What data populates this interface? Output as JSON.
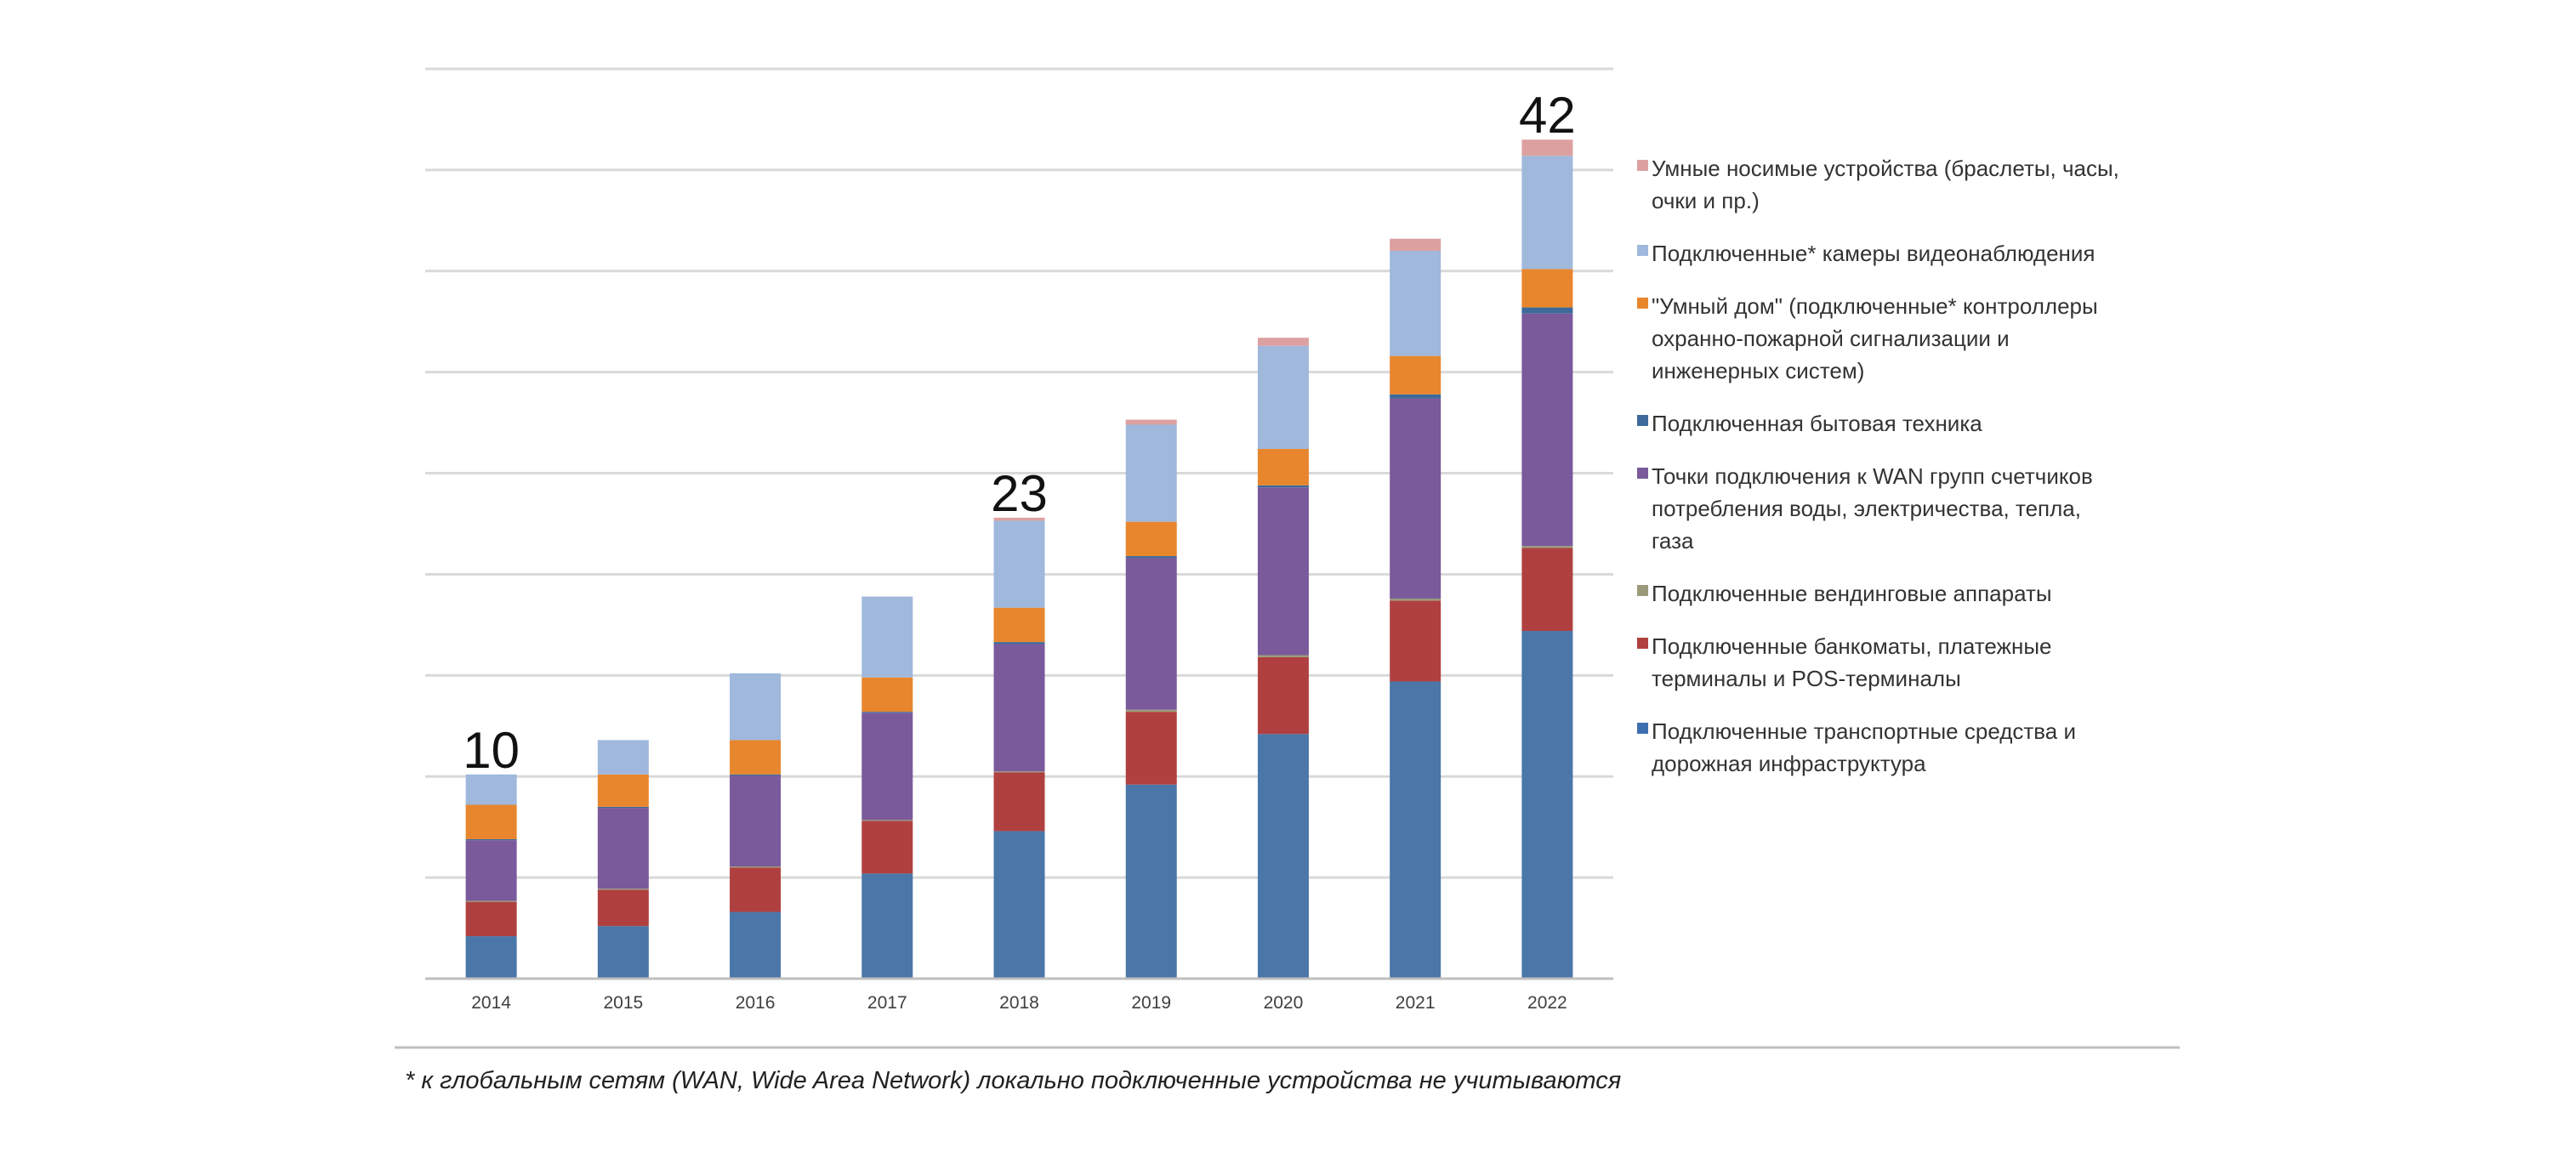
{
  "chart_data": {
    "type": "bar",
    "stacked": true,
    "title": "",
    "xlabel": "",
    "ylabel": "",
    "ylim": [
      0,
      45
    ],
    "categories": [
      "2014",
      "2015",
      "2016",
      "2017",
      "2018",
      "2019",
      "2020",
      "2021",
      "2022"
    ],
    "total_labels": [
      {
        "category": "2014",
        "text": "10"
      },
      {
        "category": "2018",
        "text": "23"
      },
      {
        "category": "2022",
        "text": "42"
      }
    ],
    "series": [
      {
        "name": "Подключенные транспортные средства и дорожная инфраструктура",
        "color": "#4a76a8",
        "values": [
          2.1,
          2.6,
          3.3,
          5.2,
          7.3,
          9.6,
          12.1,
          14.7,
          17.2
        ]
      },
      {
        "name": "Подключенные банкоматы, платежные терминалы и POS-терминалы",
        "color": "#b04040",
        "values": [
          1.7,
          1.8,
          2.2,
          2.6,
          2.9,
          3.6,
          3.8,
          4.0,
          4.1
        ]
      },
      {
        "name": "Подключенные вендинговые аппараты",
        "color": "#9a9a7a",
        "values": [
          0.05,
          0.05,
          0.05,
          0.05,
          0.05,
          0.1,
          0.1,
          0.1,
          0.1
        ]
      },
      {
        "name": "Точки подключения к WAN групп счетчиков потребления воды, электричества, тепла, газа",
        "color": "#7a5a9a",
        "values": [
          3.0,
          4.0,
          4.5,
          5.3,
          6.3,
          7.5,
          8.3,
          9.9,
          11.5
        ]
      },
      {
        "name": "Подключенная бытовая техника",
        "color": "#3d6a9a",
        "values": [
          0.05,
          0.05,
          0.05,
          0.05,
          0.1,
          0.1,
          0.1,
          0.2,
          0.3
        ]
      },
      {
        "name": "\"Умный дом\" (подключенные* контроллеры охранно-пожарной сигнализации и инженерных систем)",
        "color": "#e8862e",
        "values": [
          1.7,
          1.6,
          1.7,
          1.7,
          1.7,
          1.7,
          1.8,
          1.9,
          1.9
        ]
      },
      {
        "name": "Подключенные* камеры видеонаблюдения",
        "color": "#9fb8dc",
        "values": [
          1.5,
          1.7,
          3.3,
          4.0,
          4.3,
          4.8,
          5.1,
          5.2,
          5.6
        ]
      },
      {
        "name": "Умные носимые устройства (браслеты, часы, очки и пр.)",
        "color": "#dca0a0",
        "values": [
          0.0,
          0.0,
          0.0,
          0.0,
          0.15,
          0.25,
          0.4,
          0.6,
          0.8
        ]
      }
    ],
    "legend": {
      "placement": "right",
      "entries": [
        {
          "color": "#dca0a0",
          "lines": [
            "Умные носимые устройства (браслеты, часы,",
            "очки и пр.)"
          ]
        },
        {
          "color": "#9fb8dc",
          "lines": [
            "Подключенные* камеры видеонаблюдения"
          ]
        },
        {
          "color": "#e8862e",
          "lines": [
            "\"Умный дом\" (подключенные* контроллеры",
            "охранно-пожарной сигнализации и",
            "инженерных систем)"
          ]
        },
        {
          "color": "#3d6a9a",
          "lines": [
            "Подключенная бытовая техника"
          ]
        },
        {
          "color": "#7a5a9a",
          "lines": [
            "Точки подключения к WAN групп счетчиков",
            "потребления воды, электричества, тепла,",
            "газа"
          ]
        },
        {
          "color": "#9a9a7a",
          "lines": [
            "Подключенные вендинговые аппараты"
          ]
        },
        {
          "color": "#b04040",
          "lines": [
            "Подключенные банкоматы, платежные",
            "терминалы и POS-терминалы"
          ]
        },
        {
          "color": "#3d6fb0",
          "lines": [
            "Подключенные транспортные средства и",
            "дорожная инфраструктура"
          ]
        }
      ]
    },
    "gridlines": true,
    "gridline_step": 5
  },
  "footnote": "* к глобальным сетям (WAN, Wide Area Network) локально подключенные устройства не учитываются"
}
